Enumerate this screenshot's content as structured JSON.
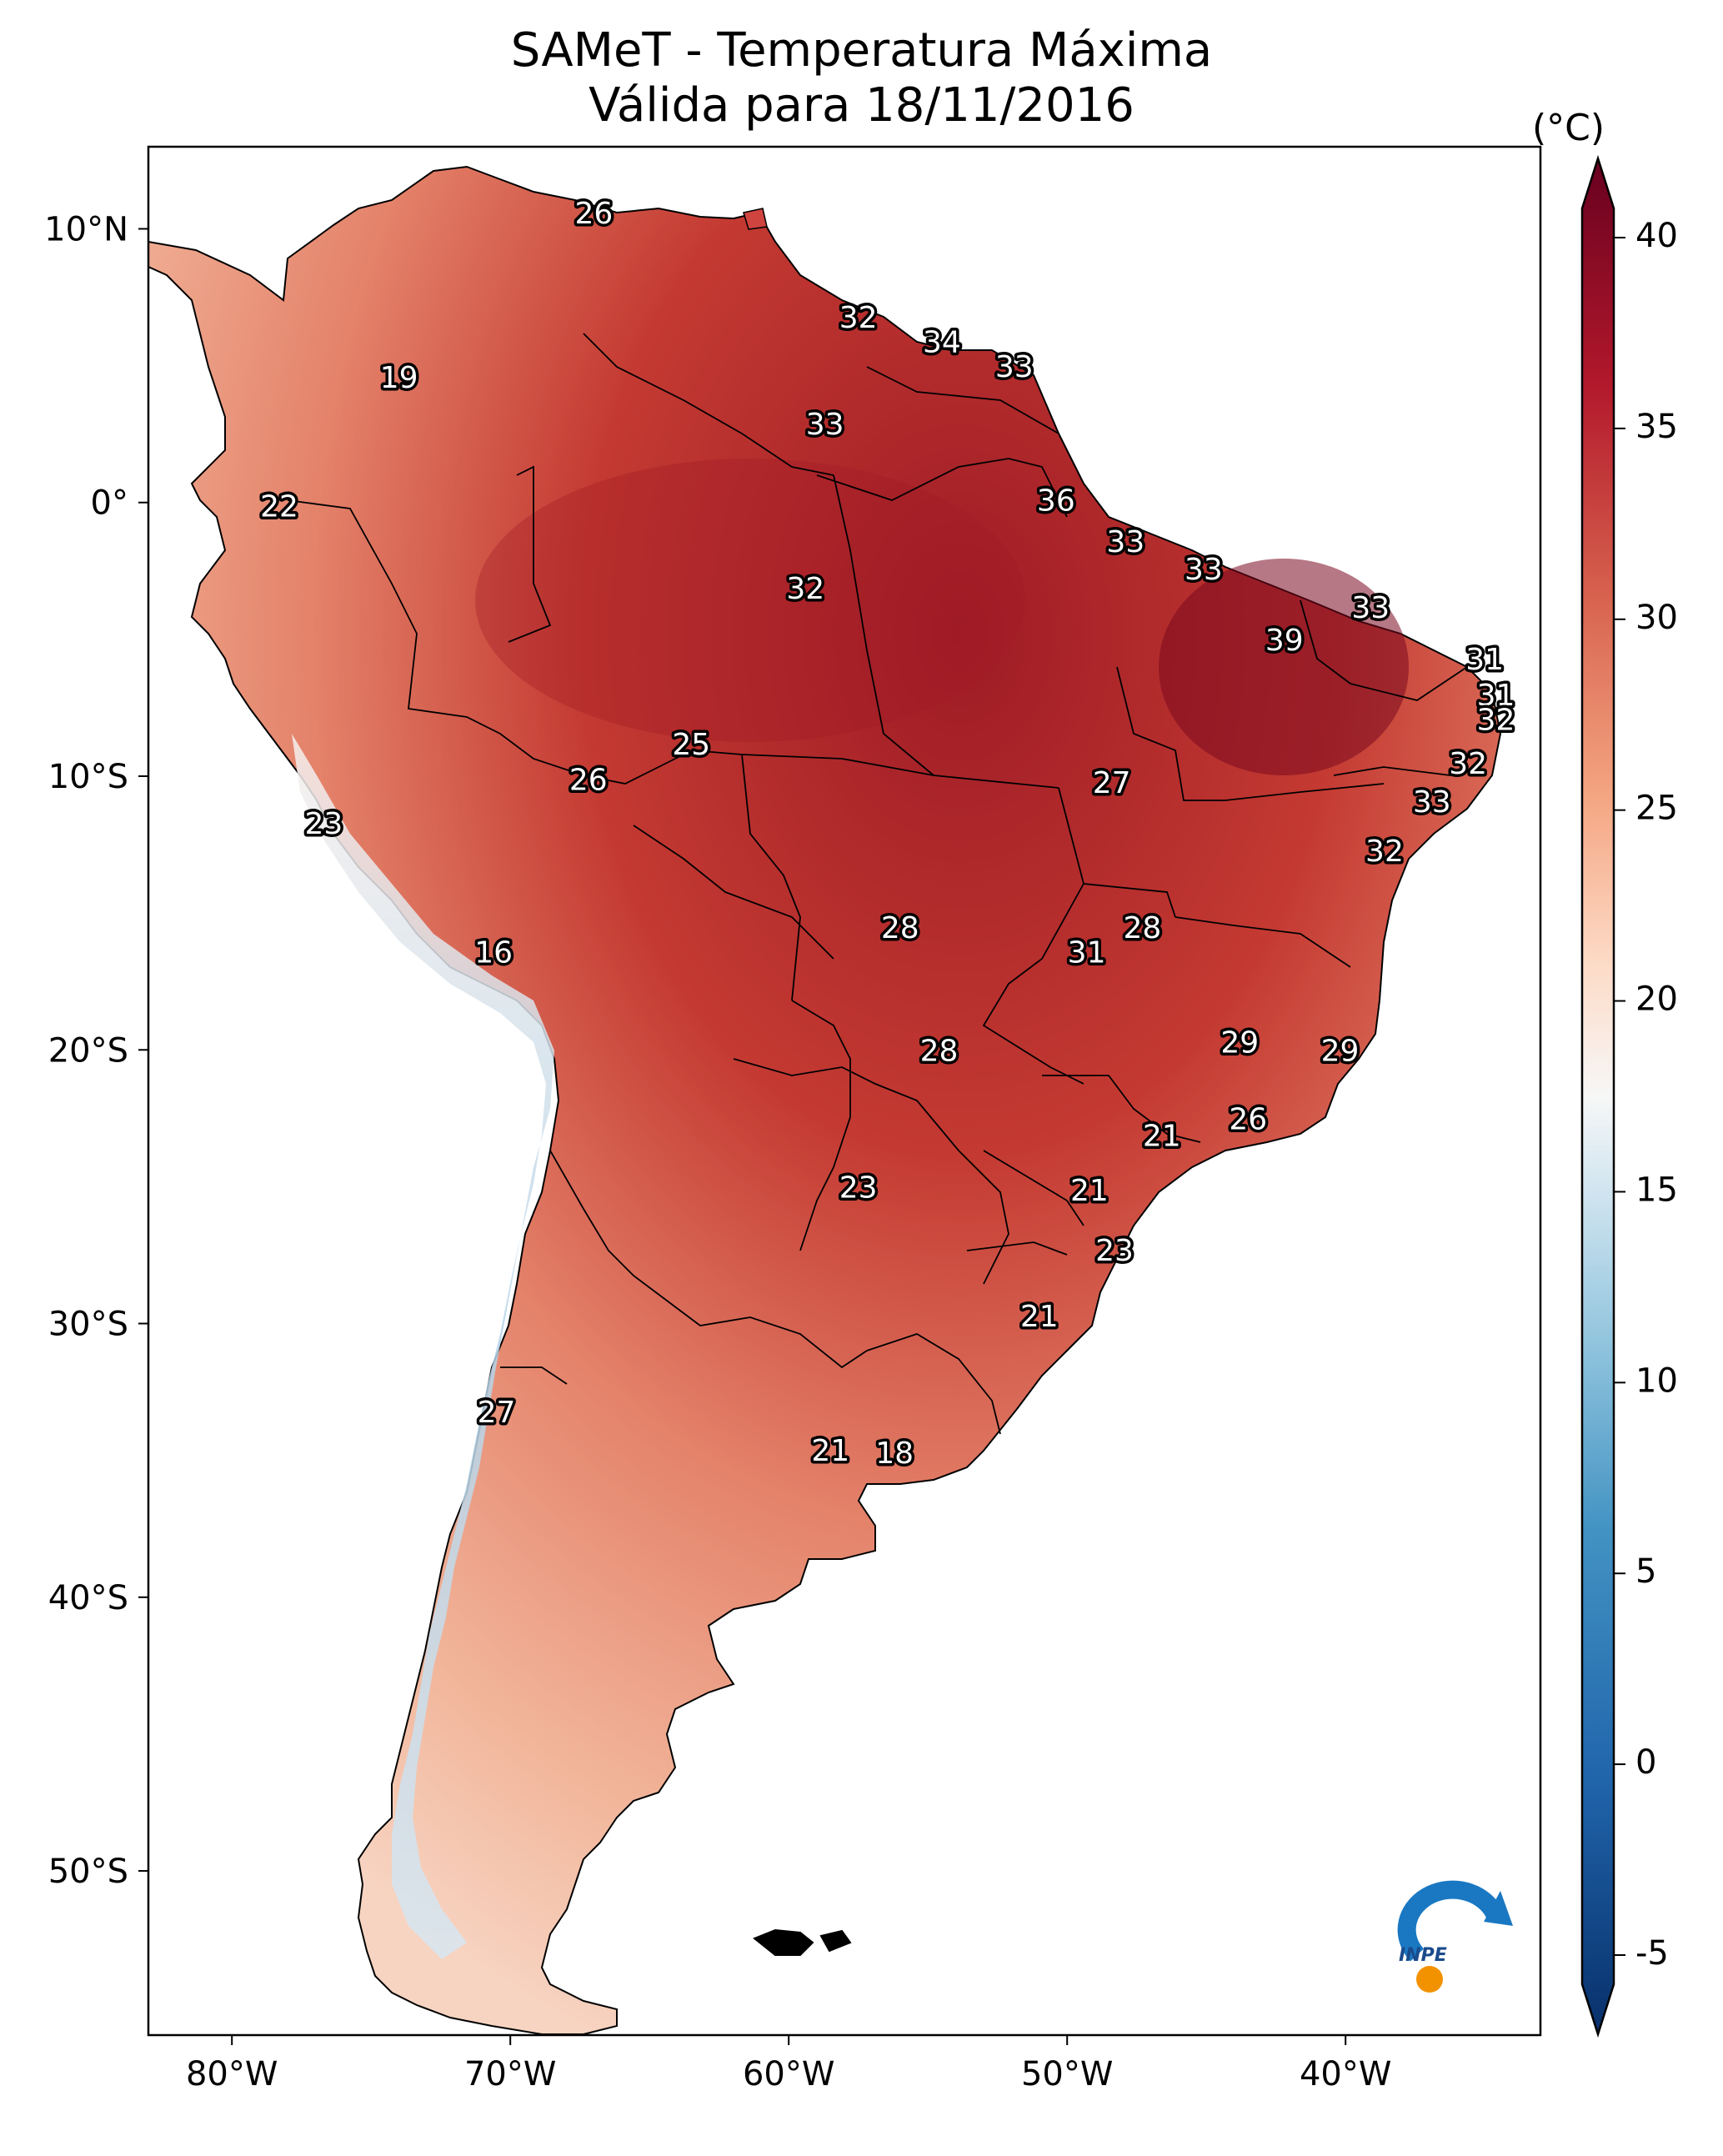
{
  "title": {
    "line1": "SAMeT - Temperatura Máxima",
    "line2": "Válida para 18/11/2016"
  },
  "colorbar": {
    "unit": "(°C)",
    "ticks": [
      "40",
      "35",
      "30",
      "25",
      "20",
      "15",
      "10",
      "5",
      "0",
      "-5"
    ],
    "tick_values": [
      40,
      35,
      30,
      25,
      20,
      15,
      10,
      5,
      0,
      -5
    ],
    "min": -7,
    "max": 42,
    "colors": [
      "#08306b",
      "#2166ac",
      "#4393c3",
      "#92c5de",
      "#d1e5f0",
      "#f7f7f7",
      "#fddbc7",
      "#f4a582",
      "#d6604d",
      "#b2182b",
      "#67001f"
    ]
  },
  "axes": {
    "lon_ticks": [
      "80°W",
      "70°W",
      "60°W",
      "50°W",
      "40°W"
    ],
    "lon_values": [
      -80,
      -70,
      -60,
      -50,
      -40
    ],
    "lat_ticks": [
      "10°N",
      "0°",
      "10°S",
      "20°S",
      "30°S",
      "40°S",
      "50°S"
    ],
    "lat_values": [
      10,
      0,
      -10,
      -20,
      -30,
      -40,
      -50
    ],
    "lon_range": [
      -83,
      -33
    ],
    "lat_range": [
      13,
      -56
    ]
  },
  "temperature_labels": [
    {
      "value": "26",
      "lon": -67,
      "lat": 10.5
    },
    {
      "value": "32",
      "lon": -57.5,
      "lat": 6.7
    },
    {
      "value": "34",
      "lon": -54.5,
      "lat": 5.8
    },
    {
      "value": "33",
      "lon": -51.9,
      "lat": 4.9
    },
    {
      "value": "19",
      "lon": -74,
      "lat": 4.5
    },
    {
      "value": "33",
      "lon": -58.7,
      "lat": 2.8
    },
    {
      "value": "22",
      "lon": -78.3,
      "lat": -0.2
    },
    {
      "value": "36",
      "lon": -50.4,
      "lat": 0
    },
    {
      "value": "33",
      "lon": -47.9,
      "lat": -1.5
    },
    {
      "value": "33",
      "lon": -45.1,
      "lat": -2.5
    },
    {
      "value": "32",
      "lon": -59.4,
      "lat": -3.2
    },
    {
      "value": "33",
      "lon": -39.1,
      "lat": -3.9
    },
    {
      "value": "39",
      "lon": -42.2,
      "lat": -5.1
    },
    {
      "value": "31",
      "lon": -35,
      "lat": -5.8
    },
    {
      "value": "31",
      "lon": -34.6,
      "lat": -7.1
    },
    {
      "value": "32",
      "lon": -34.6,
      "lat": -8
    },
    {
      "value": "25",
      "lon": -63.5,
      "lat": -8.9
    },
    {
      "value": "26",
      "lon": -67.2,
      "lat": -10.2
    },
    {
      "value": "27",
      "lon": -48.4,
      "lat": -10.3
    },
    {
      "value": "32",
      "lon": -35.6,
      "lat": -9.6
    },
    {
      "value": "33",
      "lon": -36.9,
      "lat": -11
    },
    {
      "value": "23",
      "lon": -76.7,
      "lat": -11.8
    },
    {
      "value": "32",
      "lon": -38.6,
      "lat": -12.8
    },
    {
      "value": "16",
      "lon": -70.6,
      "lat": -16.5
    },
    {
      "value": "28",
      "lon": -56,
      "lat": -15.6
    },
    {
      "value": "28",
      "lon": -47.3,
      "lat": -15.6
    },
    {
      "value": "31",
      "lon": -49.3,
      "lat": -16.5
    },
    {
      "value": "29",
      "lon": -43.8,
      "lat": -19.8
    },
    {
      "value": "29",
      "lon": -40.2,
      "lat": -20.1
    },
    {
      "value": "28",
      "lon": -54.6,
      "lat": -20.1
    },
    {
      "value": "26",
      "lon": -43.5,
      "lat": -22.6
    },
    {
      "value": "21",
      "lon": -46.6,
      "lat": -23.2
    },
    {
      "value": "23",
      "lon": -57.5,
      "lat": -25.1
    },
    {
      "value": "21",
      "lon": -49.2,
      "lat": -25.2
    },
    {
      "value": "23",
      "lon": -48.3,
      "lat": -27.4
    },
    {
      "value": "21",
      "lon": -51,
      "lat": -29.8
    },
    {
      "value": "27",
      "lon": -70.5,
      "lat": -33.3
    },
    {
      "value": "21",
      "lon": -58.5,
      "lat": -34.7
    },
    {
      "value": "18",
      "lon": -56.2,
      "lat": -34.8
    }
  ],
  "logo": {
    "text": "INPE"
  }
}
